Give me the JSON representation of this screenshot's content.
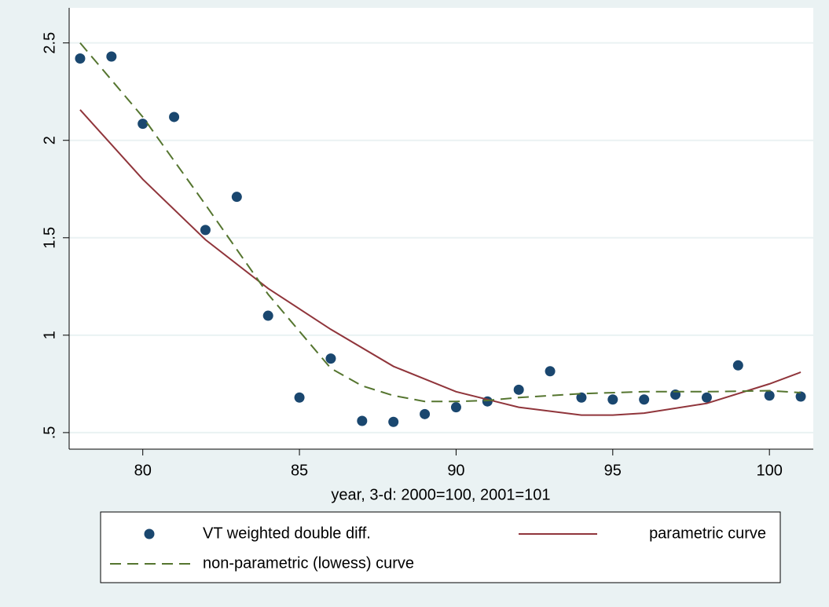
{
  "chart_data": {
    "type": "scatter-lines",
    "xlabel": "year, 3-d: 2000=100, 2001=101",
    "xlim": [
      77.65,
      101.4
    ],
    "ylim": [
      0.415,
      2.68
    ],
    "xticks": [
      80,
      85,
      90,
      95,
      100
    ],
    "yticks": [
      {
        "value": 0.5,
        "label": ".5"
      },
      1,
      1.5,
      2,
      2.5
    ],
    "grid": true,
    "series": [
      {
        "name": "VT weighted double diff.",
        "type": "scatter",
        "color": "#1a476f",
        "x": [
          78,
          79,
          80,
          81,
          82,
          83,
          84,
          85,
          86,
          87,
          88,
          89,
          90,
          91,
          92,
          93,
          94,
          95,
          96,
          97,
          98,
          99,
          100,
          101
        ],
        "values": [
          2.42,
          2.43,
          2.085,
          2.12,
          1.54,
          1.71,
          1.1,
          0.68,
          0.88,
          0.56,
          0.555,
          0.595,
          0.63,
          0.66,
          0.72,
          0.815,
          0.68,
          0.67,
          0.67,
          0.695,
          0.68,
          0.845,
          0.69,
          0.685
        ]
      },
      {
        "name": "parametric curve",
        "type": "line",
        "color": "#90353b",
        "dash": false,
        "x": [
          78,
          80,
          82,
          84,
          86,
          88,
          90,
          92,
          94,
          95,
          96,
          98,
          100,
          101
        ],
        "values": [
          2.157,
          1.8,
          1.49,
          1.24,
          1.03,
          0.84,
          0.71,
          0.63,
          0.59,
          0.59,
          0.6,
          0.65,
          0.75,
          0.81
        ]
      },
      {
        "name": "non-parametric (lowess) curve",
        "type": "line",
        "color": "#55752f",
        "dash": true,
        "x": [
          78,
          80,
          82,
          84,
          86,
          87,
          88,
          89,
          90,
          91,
          92,
          94,
          96,
          98,
          100,
          101
        ],
        "values": [
          2.5,
          2.12,
          1.67,
          1.21,
          0.83,
          0.74,
          0.69,
          0.66,
          0.66,
          0.665,
          0.68,
          0.7,
          0.71,
          0.71,
          0.715,
          0.705
        ]
      }
    ]
  }
}
